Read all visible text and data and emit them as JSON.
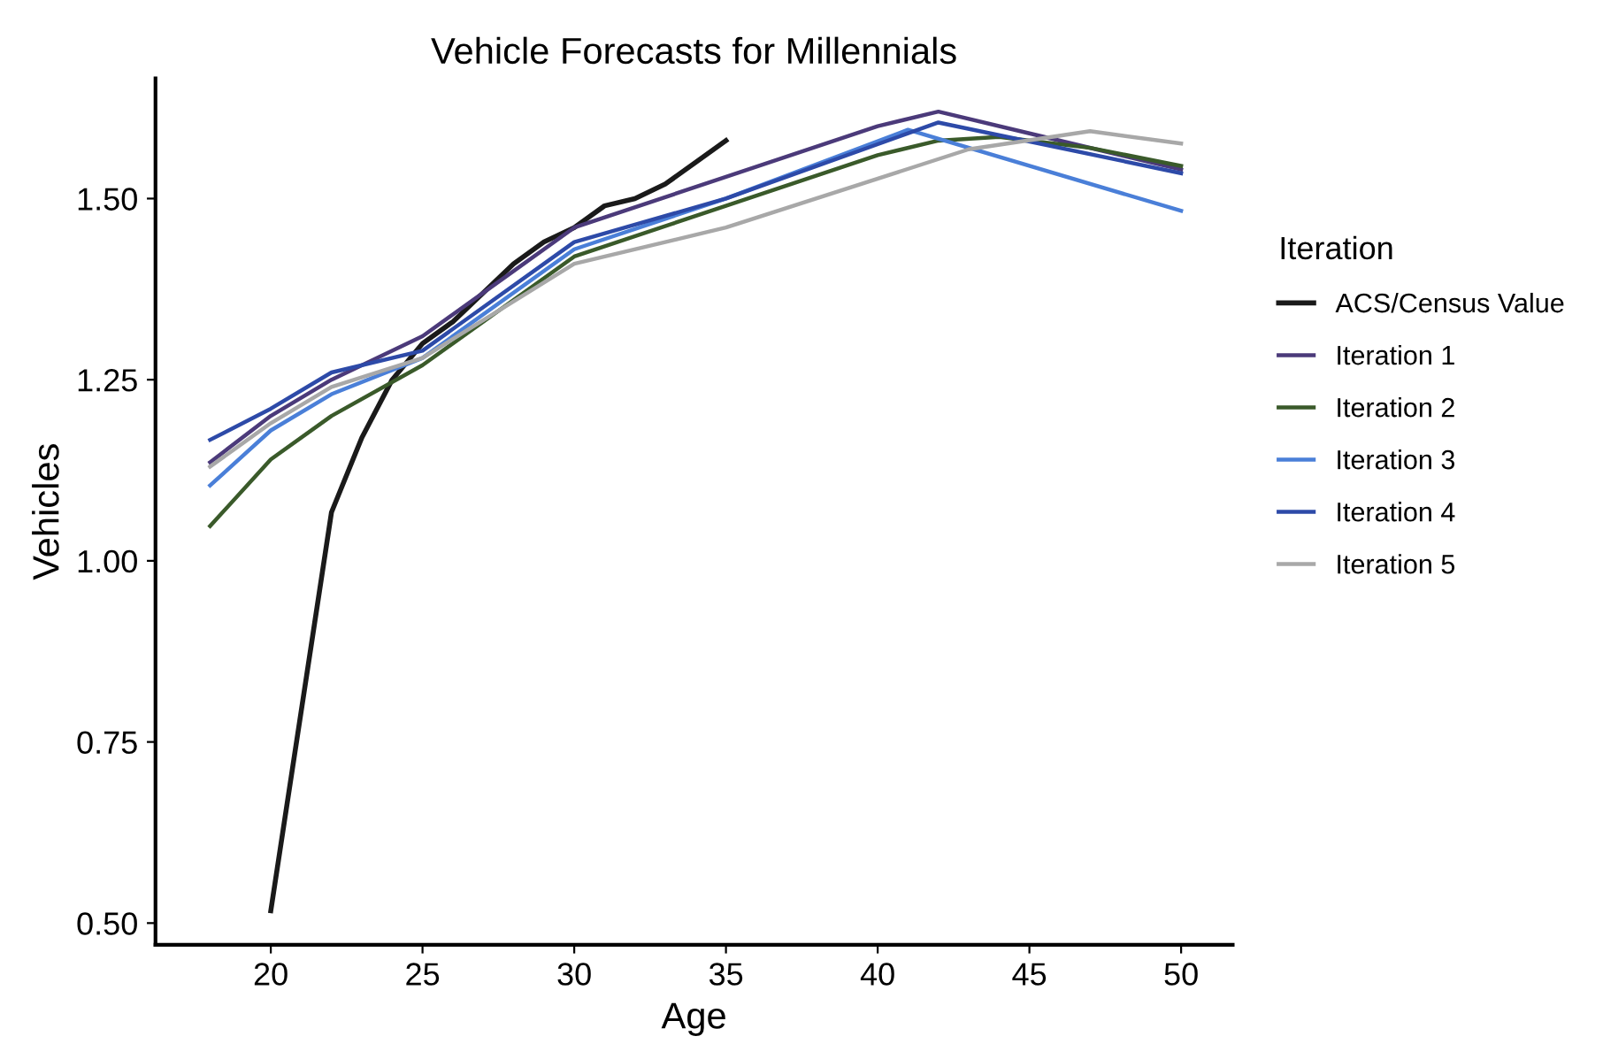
{
  "chart_data": {
    "type": "line",
    "title": "Vehicle Forecasts for Millennials",
    "xlabel": "Age",
    "ylabel": "Vehicles",
    "legend_title": "Iteration",
    "legend": "right",
    "grid": false,
    "marker": "none",
    "line_style": "solid",
    "xlim": [
      16.2,
      51.7
    ],
    "xticks": [
      20,
      25,
      30,
      35,
      40,
      45,
      50
    ],
    "ylim": [
      0.47,
      1.666
    ],
    "yticks": [
      {
        "value": 0.5,
        "label": "0.50"
      },
      {
        "value": 0.75,
        "label": "0.75"
      },
      {
        "value": 1.0,
        "label": "1.00"
      },
      {
        "value": 1.25,
        "label": "1.25"
      },
      {
        "value": 1.5,
        "label": "1.50"
      }
    ],
    "series": [
      {
        "name": "ACS/Census Value",
        "color": "#1a1a1a",
        "x": [
          20,
          22,
          23,
          24,
          25,
          26,
          27,
          28,
          29,
          30,
          31,
          32,
          33,
          34,
          35
        ],
        "values": [
          0.517,
          1.067,
          1.17,
          1.25,
          1.3,
          1.33,
          1.37,
          1.41,
          1.44,
          1.46,
          1.49,
          1.5,
          1.52,
          1.55,
          1.58
        ]
      },
      {
        "name": "Iteration 1",
        "color": "#4b3a7a",
        "x": [
          18,
          20,
          22,
          25,
          28,
          30,
          35,
          40,
          42,
          45,
          50
        ],
        "values": [
          1.136,
          1.2,
          1.25,
          1.31,
          1.4,
          1.46,
          1.53,
          1.6,
          1.62,
          1.59,
          1.54
        ]
      },
      {
        "name": "Iteration 2",
        "color": "#3a5a2a",
        "x": [
          18,
          20,
          22,
          25,
          30,
          35,
          40,
          42,
          44,
          47,
          50
        ],
        "values": [
          1.048,
          1.14,
          1.2,
          1.27,
          1.42,
          1.49,
          1.56,
          1.58,
          1.585,
          1.57,
          1.545
        ]
      },
      {
        "name": "Iteration 3",
        "color": "#4a7fd8",
        "x": [
          18,
          20,
          22,
          25,
          30,
          35,
          41,
          50
        ],
        "values": [
          1.104,
          1.18,
          1.23,
          1.28,
          1.43,
          1.5,
          1.595,
          1.483
        ]
      },
      {
        "name": "Iteration 4",
        "color": "#2d4aa8",
        "x": [
          18,
          20,
          22,
          25,
          30,
          35,
          42,
          50
        ],
        "values": [
          1.167,
          1.21,
          1.26,
          1.29,
          1.44,
          1.5,
          1.605,
          1.535
        ]
      },
      {
        "name": "Iteration 5",
        "color": "#a8a8a8",
        "x": [
          18,
          20,
          22,
          25,
          30,
          35,
          43,
          47,
          50
        ],
        "values": [
          1.13,
          1.19,
          1.24,
          1.28,
          1.41,
          1.46,
          1.568,
          1.593,
          1.576
        ]
      }
    ]
  }
}
